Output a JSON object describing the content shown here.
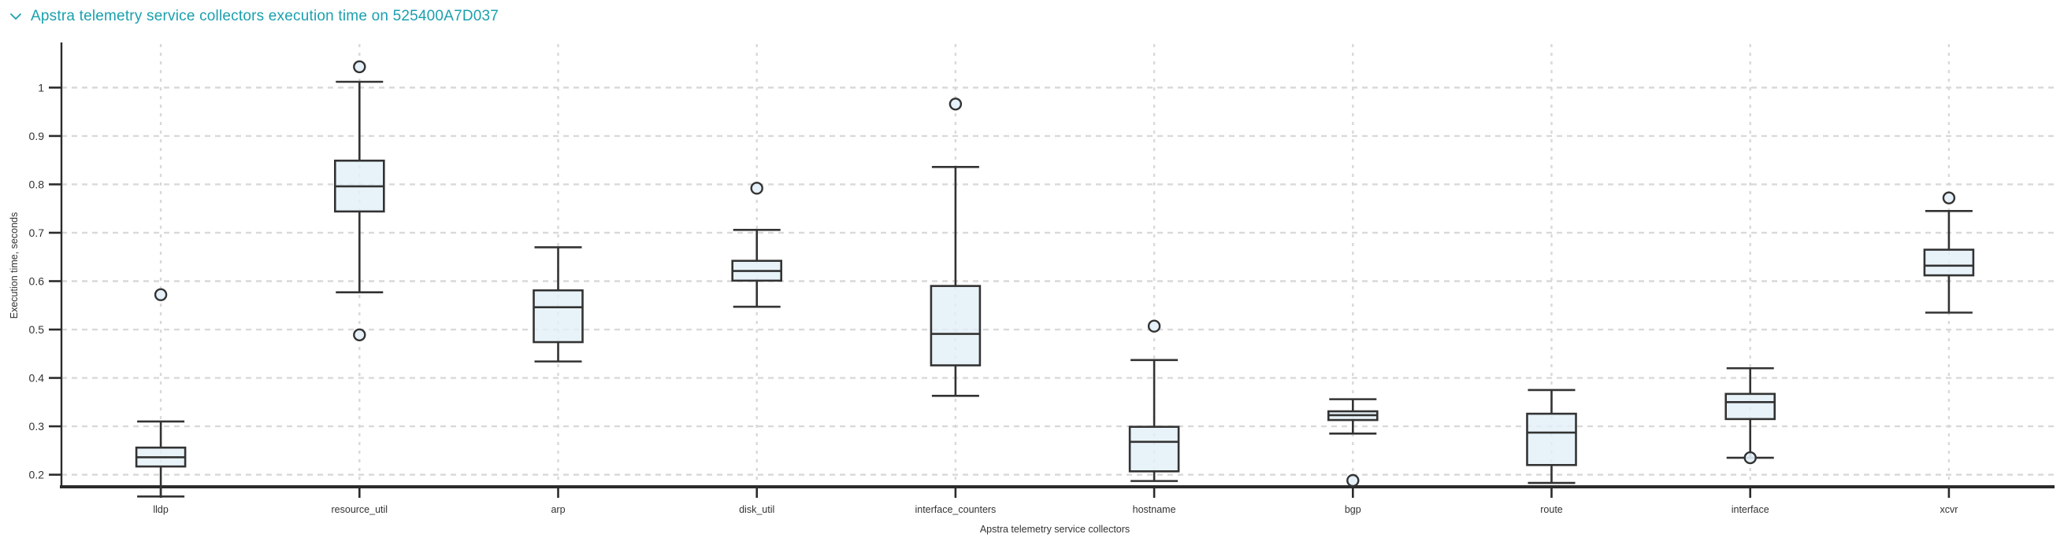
{
  "header": {
    "title": "Apstra telemetry service collectors execution time on 525400A7D037",
    "icon": "chevron-down"
  },
  "colors": {
    "accent": "#1aa0af",
    "box_fill": "#e3f0f8",
    "box_stroke": "#333333",
    "grid": "#d9d9d9",
    "axis": "#2b2b2b",
    "text": "#333333"
  },
  "chart_data": {
    "type": "boxplot",
    "title": "Apstra telemetry service collectors execution time on 525400A7D037",
    "xlabel": "Apstra telemetry service collectors",
    "ylabel": "Execution time, seconds",
    "ylim": [
      0.175,
      1.09
    ],
    "yticks": [
      {
        "value": 0.2,
        "label": "0.2"
      },
      {
        "value": 0.3,
        "label": "0.3"
      },
      {
        "value": 0.4,
        "label": "0.4"
      },
      {
        "value": 0.5,
        "label": "0.5"
      },
      {
        "value": 0.6,
        "label": "0.6"
      },
      {
        "value": 0.7,
        "label": "0.7"
      },
      {
        "value": 0.8,
        "label": "0.8"
      },
      {
        "value": 0.9,
        "label": "0.9"
      },
      {
        "value": 1.0,
        "label": "1"
      }
    ],
    "grid": {
      "horizontal": "dashed",
      "vertical": "dashed"
    },
    "legend": "none",
    "categories": [
      "lldp",
      "resource_util",
      "arp",
      "disk_util",
      "interface_counters",
      "hostname",
      "bgp",
      "route",
      "interface",
      "xcvr"
    ],
    "series": [
      {
        "name": "lldp",
        "whisker_low": 0.155,
        "q1": 0.217,
        "median": 0.236,
        "q3": 0.256,
        "whisker_high": 0.31,
        "outliers": [
          0.572
        ]
      },
      {
        "name": "resource_util",
        "whisker_low": 0.577,
        "q1": 0.744,
        "median": 0.796,
        "q3": 0.849,
        "whisker_high": 1.012,
        "outliers": [
          1.043,
          0.489
        ]
      },
      {
        "name": "arp",
        "whisker_low": 0.434,
        "q1": 0.474,
        "median": 0.546,
        "q3": 0.581,
        "whisker_high": 0.67,
        "outliers": []
      },
      {
        "name": "disk_util",
        "whisker_low": 0.547,
        "q1": 0.601,
        "median": 0.621,
        "q3": 0.642,
        "whisker_high": 0.706,
        "outliers": [
          0.792
        ]
      },
      {
        "name": "interface_counters",
        "whisker_low": 0.363,
        "q1": 0.426,
        "median": 0.491,
        "q3": 0.59,
        "whisker_high": 0.836,
        "outliers": [
          0.966
        ]
      },
      {
        "name": "hostname",
        "whisker_low": 0.187,
        "q1": 0.207,
        "median": 0.268,
        "q3": 0.299,
        "whisker_high": 0.437,
        "outliers": [
          0.507
        ]
      },
      {
        "name": "bgp",
        "whisker_low": 0.285,
        "q1": 0.313,
        "median": 0.323,
        "q3": 0.331,
        "whisker_high": 0.356,
        "outliers": [
          0.188
        ]
      },
      {
        "name": "route",
        "whisker_low": 0.183,
        "q1": 0.22,
        "median": 0.287,
        "q3": 0.326,
        "whisker_high": 0.375,
        "outliers": []
      },
      {
        "name": "interface",
        "whisker_low": 0.235,
        "q1": 0.315,
        "median": 0.35,
        "q3": 0.367,
        "whisker_high": 0.42,
        "outliers": [
          0.235
        ]
      },
      {
        "name": "xcvr",
        "whisker_low": 0.535,
        "q1": 0.612,
        "median": 0.632,
        "q3": 0.665,
        "whisker_high": 0.745,
        "outliers": [
          0.772
        ]
      }
    ]
  }
}
